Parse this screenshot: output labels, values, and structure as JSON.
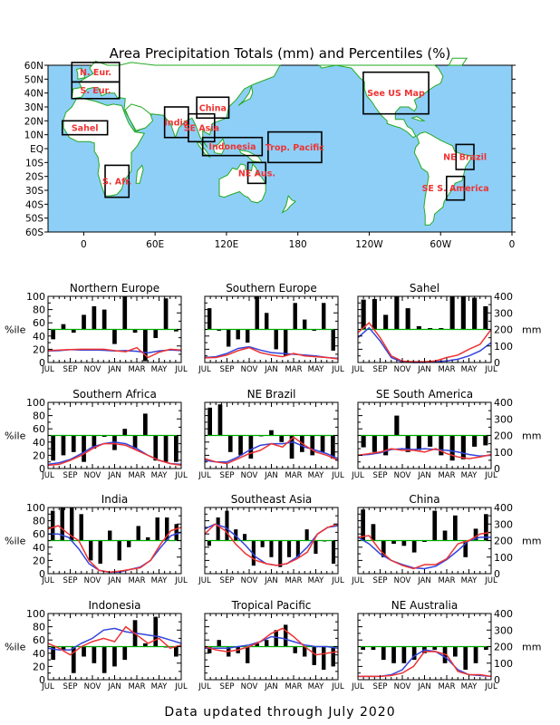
{
  "title": "Area Precipitation Totals (mm) and Percentiles (%)",
  "footer": "Data updated through July 2020",
  "colors": {
    "ocean": "#8ecff7",
    "land": "#ffffff",
    "coast": "#22aa22",
    "box_label": "#ee3333",
    "bars": "#000000",
    "pct_line": "#00aa00",
    "observed": "#ee3333",
    "normal": "#3344dd"
  },
  "map": {
    "lat_ticks": [
      "60N",
      "50N",
      "40N",
      "30N",
      "20N",
      "10N",
      "EQ",
      "10S",
      "20S",
      "30S",
      "40S",
      "50S",
      "60S"
    ],
    "lon_ticks": [
      "0",
      "60E",
      "120E",
      "180",
      "120W",
      "60W",
      "0"
    ],
    "regions": [
      {
        "label": "N. Eur.",
        "lon0": -10,
        "lon1": 30,
        "lat0": 48,
        "lat1": 62
      },
      {
        "label": "S. Eur.",
        "lon0": -10,
        "lon1": 30,
        "lat0": 36,
        "lat1": 48
      },
      {
        "label": "Sahel",
        "lon0": -18,
        "lon1": 20,
        "lat0": 10,
        "lat1": 20
      },
      {
        "label": "S. Afr.",
        "lon0": 18,
        "lon1": 38,
        "lat0": -35,
        "lat1": -12
      },
      {
        "label": "India",
        "lon0": 68,
        "lon1": 88,
        "lat0": 8,
        "lat1": 30
      },
      {
        "label": "China",
        "lon0": 95,
        "lon1": 122,
        "lat0": 22,
        "lat1": 37
      },
      {
        "label": "SE Asia",
        "lon0": 88,
        "lon1": 110,
        "lat0": 5,
        "lat1": 25
      },
      {
        "label": "Indonesia",
        "lon0": 100,
        "lon1": 150,
        "lat0": -5,
        "lat1": 8
      },
      {
        "label": "Trop. Pacific",
        "lon0": 155,
        "lon1": 200,
        "lat0": -10,
        "lat1": 12
      },
      {
        "label": "NE Aus.",
        "lon0": 138,
        "lon1": 153,
        "lat0": -25,
        "lat1": -10
      },
      {
        "label": "See US Map",
        "lon0": 235,
        "lon1": 290,
        "lat0": 25,
        "lat1": 55
      },
      {
        "label": "NE Brazil",
        "lon0": 313,
        "lon1": 328,
        "lat0": -15,
        "lat1": 3
      },
      {
        "label": "SE S. America",
        "lon0": 305,
        "lon1": 320,
        "lat0": -37,
        "lat1": -20
      }
    ]
  },
  "left_axis_label": "%ile",
  "right_axis_label": "mm",
  "pct_ticks": [
    "0",
    "20",
    "40",
    "60",
    "80",
    "100"
  ],
  "mm_ticks": [
    "0",
    "100",
    "200",
    "300",
    "400"
  ],
  "month_ticks": [
    "JUL",
    "SEP",
    "NOV",
    "JAN",
    "MAR",
    "MAY",
    "JUL"
  ],
  "chart_data": [
    {
      "type": "bar",
      "title": "Northern Europe",
      "bar_baseline": 50,
      "bars": [
        35,
        58,
        45,
        72,
        85,
        80,
        28,
        100,
        45,
        2,
        37,
        97,
        47
      ],
      "observed_mm": [
        72,
        75,
        78,
        80,
        80,
        80,
        72,
        65,
        90,
        30,
        62,
        80,
        75
      ],
      "normal_mm": [
        70,
        72,
        78,
        75,
        76,
        74,
        70,
        72,
        68,
        58,
        70,
        76,
        72
      ]
    },
    {
      "type": "bar",
      "title": "Southern Europe",
      "bar_baseline": 50,
      "bars": [
        82,
        48,
        24,
        35,
        30,
        100,
        75,
        20,
        10,
        90,
        65,
        48,
        90,
        18
      ],
      "observed_mm": [
        28,
        30,
        45,
        72,
        90,
        60,
        45,
        35,
        55,
        40,
        35,
        30,
        22
      ],
      "normal_mm": [
        30,
        35,
        55,
        85,
        95,
        75,
        60,
        55,
        50,
        45,
        40,
        30,
        25
      ]
    },
    {
      "type": "bar",
      "title": "Sahel",
      "bar_baseline": 50,
      "bars": [
        95,
        96,
        72,
        100,
        82,
        55,
        52,
        52,
        100,
        100,
        98,
        85
      ],
      "observed_mm": [
        180,
        240,
        150,
        40,
        8,
        5,
        5,
        10,
        30,
        45,
        80,
        110,
        200
      ],
      "normal_mm": [
        150,
        210,
        130,
        30,
        3,
        0,
        0,
        5,
        10,
        20,
        40,
        70,
        120
      ]
    },
    {
      "type": "bar",
      "title": "Southern Africa",
      "bar_baseline": 50,
      "bars": [
        12,
        20,
        25,
        10,
        30,
        48,
        28,
        60,
        30,
        83,
        12,
        10,
        10
      ],
      "observed_mm": [
        20,
        25,
        50,
        80,
        120,
        150,
        150,
        140,
        110,
        80,
        50,
        30,
        20
      ],
      "normal_mm": [
        25,
        35,
        55,
        90,
        130,
        150,
        160,
        150,
        120,
        80,
        50,
        30,
        25
      ]
    },
    {
      "type": "bar",
      "title": "NE Brazil",
      "bar_baseline": 50,
      "bars": [
        92,
        97,
        25,
        20,
        15,
        50,
        58,
        40,
        15,
        25,
        20,
        25,
        15
      ],
      "observed_mm": [
        60,
        40,
        30,
        60,
        90,
        110,
        150,
        130,
        190,
        140,
        100,
        80,
        50
      ],
      "normal_mm": [
        50,
        40,
        40,
        70,
        110,
        140,
        150,
        150,
        160,
        130,
        110,
        90,
        60
      ]
    },
    {
      "type": "bar",
      "title": "SE South America",
      "bar_baseline": 50,
      "bars": [
        32,
        25,
        20,
        80,
        25,
        28,
        33,
        20,
        12,
        14,
        33,
        35
      ],
      "observed_mm": [
        80,
        90,
        100,
        120,
        110,
        110,
        100,
        120,
        90,
        70,
        60,
        70,
        85
      ],
      "normal_mm": [
        80,
        85,
        95,
        115,
        120,
        115,
        120,
        115,
        110,
        100,
        85,
        75,
        80
      ]
    },
    {
      "type": "bar",
      "title": "India",
      "bar_baseline": 50,
      "bars": [
        95,
        100,
        100,
        90,
        20,
        15,
        65,
        20,
        40,
        72,
        55,
        85,
        85,
        75
      ],
      "observed_mm": [
        270,
        290,
        240,
        200,
        80,
        20,
        10,
        15,
        25,
        35,
        80,
        180,
        260,
        280
      ],
      "normal_mm": [
        240,
        240,
        220,
        150,
        60,
        20,
        8,
        10,
        25,
        40,
        80,
        160,
        230,
        250
      ]
    },
    {
      "type": "bar",
      "title": "Southeast Asia",
      "bar_baseline": 50,
      "bars": [
        42,
        85,
        95,
        67,
        60,
        12,
        40,
        25,
        10,
        25,
        25,
        67,
        30,
        50,
        15
      ],
      "observed_mm": [
        240,
        300,
        260,
        180,
        120,
        80,
        60,
        50,
        60,
        90,
        130,
        240,
        280,
        300
      ],
      "normal_mm": [
        270,
        300,
        280,
        230,
        170,
        100,
        60,
        50,
        60,
        100,
        160,
        240,
        280,
        290
      ]
    },
    {
      "type": "bar",
      "title": "China",
      "bar_baseline": 50,
      "bars": [
        97,
        75,
        25,
        45,
        42,
        32,
        48,
        95,
        65,
        88,
        25,
        68,
        90
      ],
      "observed_mm": [
        220,
        230,
        140,
        80,
        50,
        30,
        55,
        55,
        90,
        180,
        200,
        240,
        250
      ],
      "normal_mm": [
        220,
        180,
        120,
        80,
        55,
        35,
        30,
        45,
        85,
        140,
        200,
        220,
        220
      ]
    },
    {
      "type": "bar",
      "title": "Indonesia",
      "bar_baseline": 50,
      "bars": [
        30,
        45,
        10,
        35,
        25,
        10,
        20,
        30,
        90,
        55,
        95,
        50,
        35
      ],
      "observed_mm": [
        220,
        190,
        150,
        200,
        230,
        250,
        230,
        320,
        270,
        220,
        250,
        190,
        210
      ],
      "normal_mm": [
        190,
        180,
        180,
        220,
        250,
        300,
        310,
        290,
        280,
        270,
        260,
        240,
        220
      ]
    },
    {
      "type": "bar",
      "title": "Tropical Pacific",
      "bar_baseline": 50,
      "bars": [
        40,
        60,
        35,
        40,
        25,
        55,
        60,
        75,
        83,
        40,
        35,
        22,
        15,
        20
      ],
      "observed_mm": [
        200,
        180,
        170,
        180,
        200,
        230,
        280,
        310,
        260,
        200,
        150,
        160,
        170
      ],
      "normal_mm": [
        190,
        190,
        190,
        200,
        210,
        230,
        260,
        250,
        230,
        210,
        200,
        200,
        190
      ]
    },
    {
      "type": "bar",
      "title": "NE Australia",
      "bar_baseline": 50,
      "bars": [
        45,
        45,
        30,
        25,
        25,
        30,
        40,
        45,
        25,
        35,
        15,
        25,
        45
      ],
      "observed_mm": [
        20,
        20,
        20,
        25,
        40,
        80,
        170,
        170,
        150,
        50,
        30,
        30,
        20
      ],
      "normal_mm": [
        20,
        20,
        20,
        30,
        60,
        140,
        180,
        170,
        130,
        60,
        30,
        25,
        20
      ]
    }
  ]
}
